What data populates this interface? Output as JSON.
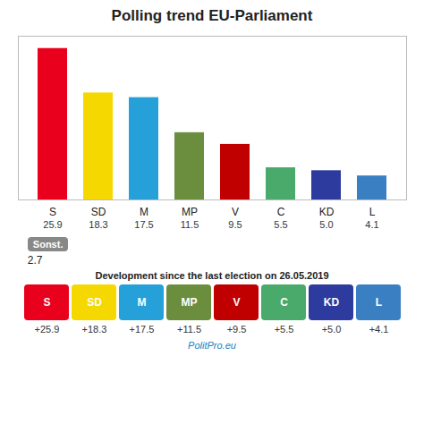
{
  "chart_data": {
    "type": "bar",
    "title": "Polling trend EU-Parliament",
    "categories": [
      "S",
      "SD",
      "M",
      "MP",
      "V",
      "C",
      "KD",
      "L"
    ],
    "values": [
      25.9,
      18.3,
      17.5,
      11.5,
      9.5,
      5.5,
      5.0,
      4.1
    ],
    "value_labels": [
      "25.9",
      "18.3",
      "17.5",
      "11.5",
      "9.5",
      "5.5",
      "5.0",
      "4.1"
    ],
    "colors": [
      "#e8001c",
      "#f5d800",
      "#25a0d8",
      "#6b8e3e",
      "#c00000",
      "#4aaa6b",
      "#2e3b9e",
      "#3a7fc1"
    ],
    "ylim": [
      0,
      28
    ],
    "tick_labels": "x",
    "data_labels": true,
    "other": {
      "label": "Sonst.",
      "value": 2.7,
      "color": "#888888"
    },
    "development": {
      "title": "Development since the last election on 26.05.2019",
      "categories": [
        "S",
        "SD",
        "M",
        "MP",
        "V",
        "C",
        "KD",
        "L"
      ],
      "values": [
        25.9,
        18.3,
        17.5,
        11.5,
        9.5,
        5.5,
        5.0,
        4.1
      ],
      "value_labels": [
        "+25.9",
        "+18.3",
        "+17.5",
        "+11.5",
        "+9.5",
        "+5.5",
        "+5.0",
        "+4.1"
      ]
    },
    "annotations": [
      "PolitPro.eu"
    ]
  }
}
